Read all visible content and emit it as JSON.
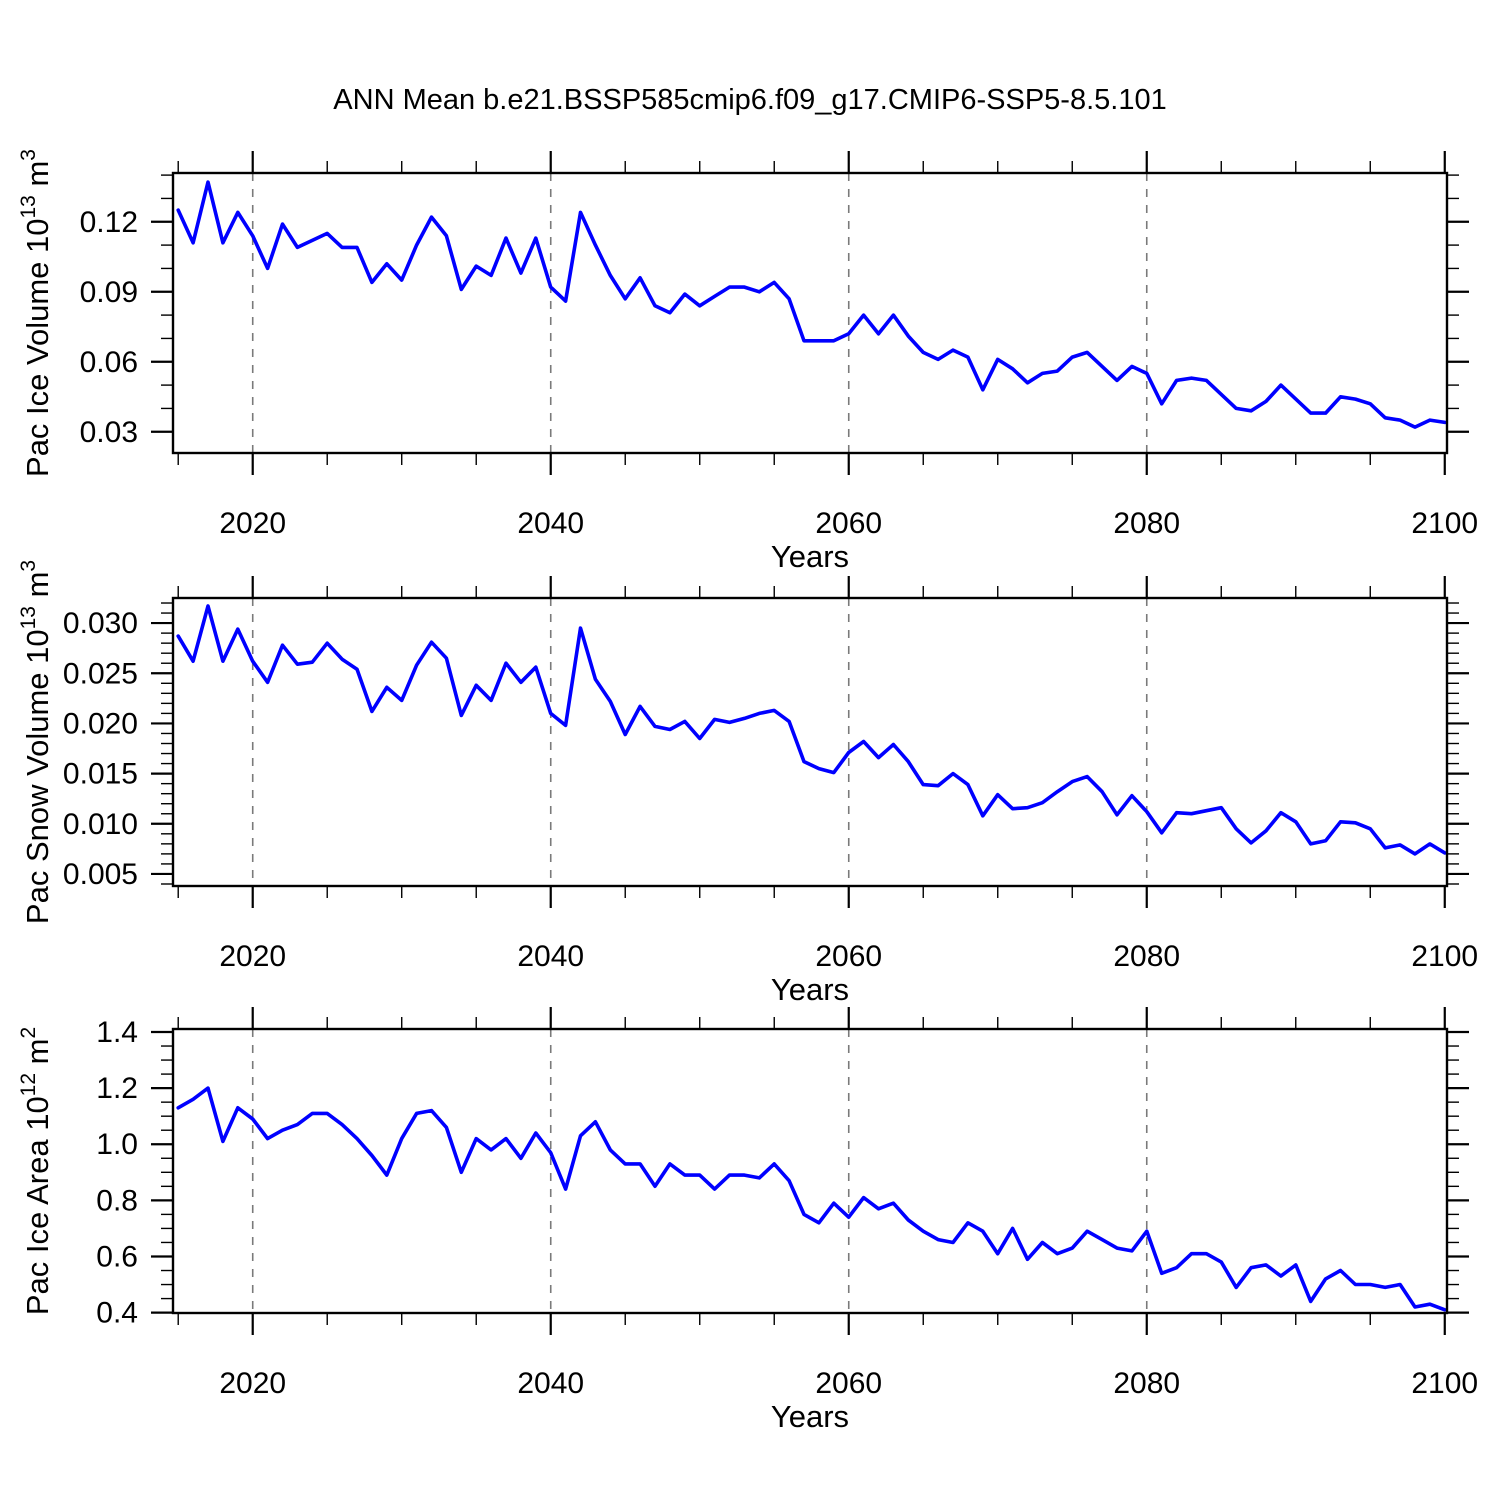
{
  "title": "ANN Mean b.e21.BSSP585cmip6.f09_g17.CMIP6-SSP5-8.5.101",
  "colors": {
    "line": "#0000ff",
    "axis": "#000000",
    "grid": "#7a7a7a",
    "background": "#ffffff"
  },
  "x_axis": {
    "label": "Years",
    "ticks": [
      2020,
      2040,
      2060,
      2080,
      2100
    ],
    "minor_step": 5,
    "grid_years": [
      2020,
      2040,
      2060,
      2080
    ],
    "range": [
      2014.65,
      2100.15
    ]
  },
  "years": [
    2015,
    2016,
    2017,
    2018,
    2019,
    2020,
    2021,
    2022,
    2023,
    2024,
    2025,
    2026,
    2027,
    2028,
    2029,
    2030,
    2031,
    2032,
    2033,
    2034,
    2035,
    2036,
    2037,
    2038,
    2039,
    2040,
    2041,
    2042,
    2043,
    2044,
    2045,
    2046,
    2047,
    2048,
    2049,
    2050,
    2051,
    2052,
    2053,
    2054,
    2055,
    2056,
    2057,
    2058,
    2059,
    2060,
    2061,
    2062,
    2063,
    2064,
    2065,
    2066,
    2067,
    2068,
    2069,
    2070,
    2071,
    2072,
    2073,
    2074,
    2075,
    2076,
    2077,
    2078,
    2079,
    2080,
    2081,
    2082,
    2083,
    2084,
    2085,
    2086,
    2087,
    2088,
    2089,
    2090,
    2091,
    2092,
    2093,
    2094,
    2095,
    2096,
    2097,
    2098,
    2099,
    2100
  ],
  "chart_data": [
    {
      "type": "line",
      "name": "pac-ice-volume",
      "ylabel": "Pac Ice Volume 10¹³ m³",
      "ylabel_parts": [
        {
          "text": "Pac Ice Volume 10"
        },
        {
          "text": "13",
          "sup": true
        },
        {
          "text": " m"
        },
        {
          "text": "3",
          "sup": true
        }
      ],
      "xlabel": "Years",
      "yticks": [
        0.03,
        0.06,
        0.09,
        0.12
      ],
      "ytick_decimals": 2,
      "y_minor_step": 0.01,
      "ylim": [
        0.0209,
        0.1409
      ],
      "values": [
        0.125,
        0.111,
        0.137,
        0.111,
        0.124,
        0.114,
        0.1,
        0.119,
        0.109,
        0.112,
        0.115,
        0.109,
        0.109,
        0.094,
        0.102,
        0.095,
        0.11,
        0.122,
        0.114,
        0.091,
        0.101,
        0.097,
        0.113,
        0.098,
        0.113,
        0.092,
        0.086,
        0.124,
        0.11,
        0.097,
        0.087,
        0.096,
        0.084,
        0.081,
        0.089,
        0.084,
        0.088,
        0.092,
        0.092,
        0.09,
        0.094,
        0.087,
        0.069,
        0.069,
        0.069,
        0.072,
        0.08,
        0.072,
        0.08,
        0.071,
        0.064,
        0.061,
        0.065,
        0.062,
        0.048,
        0.061,
        0.057,
        0.051,
        0.055,
        0.056,
        0.062,
        0.064,
        0.058,
        0.052,
        0.058,
        0.055,
        0.042,
        0.052,
        0.053,
        0.052,
        0.046,
        0.04,
        0.039,
        0.043,
        0.05,
        0.044,
        0.038,
        0.038,
        0.045,
        0.044,
        0.042,
        0.036,
        0.035,
        0.032,
        0.035,
        0.034
      ]
    },
    {
      "type": "line",
      "name": "pac-snow-volume",
      "ylabel": "Pac Snow Volume 10¹³ m³",
      "ylabel_parts": [
        {
          "text": "Pac Snow Volume 10"
        },
        {
          "text": "13",
          "sup": true
        },
        {
          "text": " m"
        },
        {
          "text": "3",
          "sup": true
        }
      ],
      "xlabel": "Years",
      "yticks": [
        0.005,
        0.01,
        0.015,
        0.02,
        0.025,
        0.03
      ],
      "ytick_decimals": 3,
      "y_minor_step": 0.001,
      "ylim": [
        0.0038,
        0.0325
      ],
      "values": [
        0.0287,
        0.0262,
        0.0317,
        0.0262,
        0.0294,
        0.0262,
        0.0241,
        0.0278,
        0.0259,
        0.0261,
        0.028,
        0.0264,
        0.0254,
        0.0212,
        0.0236,
        0.0223,
        0.0258,
        0.0281,
        0.0265,
        0.0208,
        0.0238,
        0.0223,
        0.026,
        0.0241,
        0.0256,
        0.021,
        0.0198,
        0.0295,
        0.0244,
        0.0222,
        0.0189,
        0.0217,
        0.0197,
        0.0194,
        0.0202,
        0.0185,
        0.0204,
        0.0201,
        0.0205,
        0.021,
        0.0213,
        0.0202,
        0.0162,
        0.0155,
        0.0151,
        0.0171,
        0.0182,
        0.0166,
        0.0179,
        0.0162,
        0.0139,
        0.0138,
        0.015,
        0.0139,
        0.0108,
        0.0129,
        0.0115,
        0.0116,
        0.0121,
        0.0132,
        0.0142,
        0.0147,
        0.0132,
        0.0109,
        0.0128,
        0.0112,
        0.0091,
        0.0111,
        0.011,
        0.0113,
        0.0116,
        0.0095,
        0.0081,
        0.0093,
        0.0111,
        0.0102,
        0.008,
        0.0083,
        0.0102,
        0.0101,
        0.0095,
        0.0076,
        0.0079,
        0.007,
        0.008,
        0.0071
      ]
    },
    {
      "type": "line",
      "name": "pac-ice-area",
      "ylabel": "Pac Ice Area 10¹² m²",
      "ylabel_parts": [
        {
          "text": "Pac Ice Area 10"
        },
        {
          "text": "12",
          "sup": true
        },
        {
          "text": " m"
        },
        {
          "text": "2",
          "sup": true
        }
      ],
      "xlabel": "Years",
      "yticks": [
        0.4,
        0.6,
        0.8,
        1.0,
        1.2,
        1.4
      ],
      "ytick_decimals": 1,
      "y_minor_step": 0.05,
      "ylim": [
        0.3986,
        1.4107
      ],
      "values": [
        1.13,
        1.16,
        1.2,
        1.01,
        1.13,
        1.09,
        1.02,
        1.05,
        1.07,
        1.11,
        1.11,
        1.07,
        1.02,
        0.96,
        0.89,
        1.02,
        1.11,
        1.12,
        1.06,
        0.9,
        1.02,
        0.98,
        1.02,
        0.95,
        1.04,
        0.97,
        0.84,
        1.03,
        1.08,
        0.98,
        0.93,
        0.93,
        0.85,
        0.93,
        0.89,
        0.89,
        0.84,
        0.89,
        0.89,
        0.88,
        0.93,
        0.87,
        0.75,
        0.72,
        0.79,
        0.74,
        0.81,
        0.77,
        0.79,
        0.73,
        0.69,
        0.66,
        0.65,
        0.72,
        0.69,
        0.61,
        0.7,
        0.59,
        0.65,
        0.61,
        0.63,
        0.69,
        0.66,
        0.63,
        0.62,
        0.69,
        0.54,
        0.56,
        0.61,
        0.61,
        0.58,
        0.49,
        0.56,
        0.57,
        0.53,
        0.57,
        0.44,
        0.52,
        0.55,
        0.5,
        0.5,
        0.49,
        0.5,
        0.42,
        0.43,
        0.41
      ]
    }
  ]
}
